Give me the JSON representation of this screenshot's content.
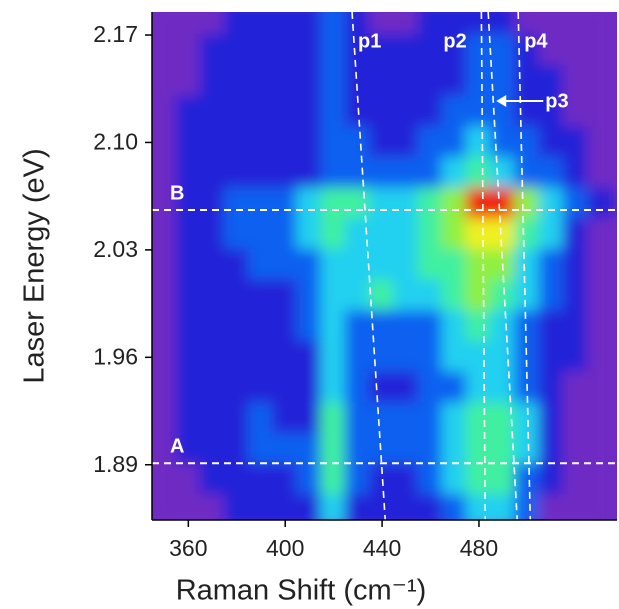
{
  "chart_data": {
    "type": "heatmap",
    "xlabel": "Raman Shift (cm⁻¹)",
    "ylabel": "Laser Energy (eV)",
    "xlim": [
      345,
      537
    ],
    "ylim": [
      1.854,
      2.185
    ],
    "xticks": [
      360,
      400,
      440,
      480
    ],
    "yticks": [
      2.17,
      {
        "value": 2.1,
        "label": "2.10"
      },
      2.03,
      1.96,
      1.89
    ],
    "x": [
      350,
      360,
      370,
      380,
      390,
      400,
      410,
      420,
      430,
      440,
      450,
      460,
      470,
      480,
      490,
      500,
      510,
      520,
      530
    ],
    "y": [
      2.18,
      2.16,
      2.14,
      2.12,
      2.1,
      2.08,
      2.06,
      2.04,
      2.02,
      2.0,
      1.98,
      1.96,
      1.94,
      1.92,
      1.9,
      1.88,
      1.86
    ],
    "zlim": [
      0,
      8
    ],
    "colorscale": [
      "#4a1a90",
      "#6f2cc4",
      "#2222d8",
      "#1060f0",
      "#20d0f0",
      "#40f0a0",
      "#90f040",
      "#f0f020",
      "#f02010"
    ],
    "z": [
      [
        1,
        1,
        1,
        2,
        2,
        2,
        2,
        3,
        2,
        1,
        1,
        2,
        2,
        2,
        2,
        1,
        1,
        1,
        1
      ],
      [
        1,
        1,
        2,
        2,
        2,
        2,
        2,
        3,
        2,
        2,
        2,
        2,
        2,
        3,
        3,
        2,
        1,
        1,
        1
      ],
      [
        1,
        1,
        2,
        2,
        2,
        2,
        2,
        3,
        2,
        2,
        2,
        2,
        2,
        3,
        3,
        2,
        2,
        1,
        1
      ],
      [
        1,
        2,
        2,
        2,
        2,
        2,
        2,
        3,
        2,
        2,
        2,
        2,
        3,
        3,
        3,
        2,
        2,
        1,
        1
      ],
      [
        1,
        2,
        2,
        2,
        2,
        2,
        2,
        3,
        3,
        2,
        2,
        3,
        3,
        4,
        3,
        3,
        2,
        2,
        1
      ],
      [
        1,
        2,
        2,
        2,
        2,
        2,
        2,
        3,
        3,
        3,
        3,
        3,
        4,
        5,
        4,
        3,
        3,
        2,
        1
      ],
      [
        1,
        2,
        2,
        3,
        3,
        3,
        4,
        5,
        5,
        4,
        4,
        5,
        6,
        8,
        8,
        6,
        4,
        3,
        2
      ],
      [
        1,
        2,
        2,
        3,
        3,
        3,
        4,
        5,
        4,
        4,
        4,
        5,
        6,
        7,
        7,
        5,
        4,
        2,
        1
      ],
      [
        1,
        2,
        2,
        2,
        3,
        3,
        3,
        4,
        4,
        4,
        4,
        5,
        5,
        6,
        6,
        4,
        3,
        2,
        1
      ],
      [
        1,
        2,
        2,
        2,
        2,
        2,
        3,
        4,
        4,
        5,
        4,
        4,
        5,
        6,
        5,
        4,
        3,
        2,
        1
      ],
      [
        1,
        2,
        2,
        2,
        2,
        2,
        3,
        4,
        3,
        3,
        3,
        3,
        4,
        5,
        4,
        3,
        2,
        2,
        1
      ],
      [
        1,
        2,
        2,
        2,
        2,
        2,
        2,
        4,
        3,
        3,
        3,
        3,
        4,
        4,
        4,
        3,
        2,
        2,
        1
      ],
      [
        1,
        2,
        2,
        2,
        2,
        2,
        2,
        4,
        3,
        2,
        2,
        3,
        3,
        4,
        4,
        3,
        2,
        1,
        1
      ],
      [
        1,
        2,
        2,
        2,
        3,
        2,
        2,
        5,
        3,
        3,
        3,
        3,
        4,
        5,
        5,
        4,
        2,
        1,
        1
      ],
      [
        1,
        2,
        2,
        2,
        3,
        3,
        3,
        5,
        3,
        3,
        3,
        3,
        4,
        5,
        5,
        4,
        2,
        1,
        1
      ],
      [
        1,
        1,
        2,
        2,
        2,
        2,
        3,
        5,
        3,
        2,
        2,
        3,
        4,
        5,
        5,
        3,
        2,
        1,
        1
      ],
      [
        1,
        1,
        1,
        2,
        2,
        2,
        2,
        4,
        2,
        2,
        2,
        2,
        3,
        4,
        4,
        3,
        1,
        1,
        1
      ]
    ],
    "lines": [
      {
        "label": "p1",
        "x": [
          427.6,
          441.3
        ],
        "y": [
          2.185,
          1.854
        ]
      },
      {
        "label": "p2",
        "x": [
          481.0,
          482.6
        ],
        "y": [
          2.185,
          1.854
        ]
      },
      {
        "label": "p3",
        "x": [
          483.8,
          495.8
        ],
        "y": [
          2.185,
          1.854
        ]
      },
      {
        "label": "p4",
        "x": [
          496.2,
          501.2
        ],
        "y": [
          2.185,
          1.854
        ]
      }
    ],
    "hlines": [
      {
        "label": "B",
        "y": 2.056
      },
      {
        "label": "A",
        "y": 1.891
      }
    ]
  }
}
